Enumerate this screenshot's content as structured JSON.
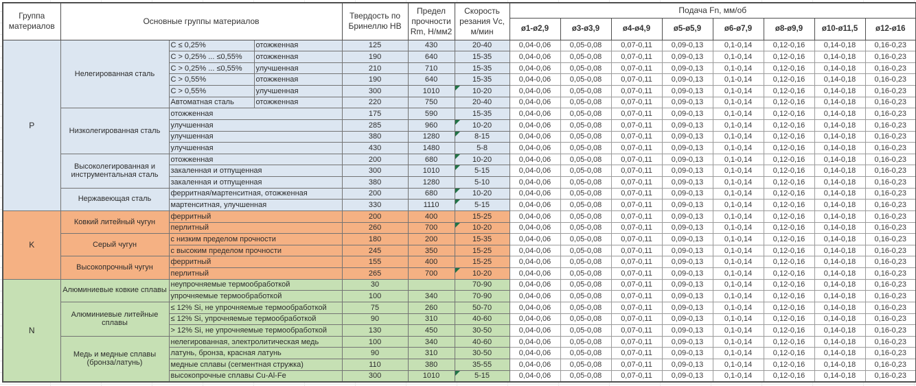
{
  "header": {
    "col_group": "Группа материалов",
    "col_material": "Основные группы материалов",
    "col_hb": "Твердость по Бринеллю HB",
    "col_rm": "Предел прочности Rm, Н/мм2",
    "col_vc": "Скорость резания Vc, м/мин",
    "col_feed": "Подача Fn, мм/об",
    "diameters": [
      "ø1-ø2,9",
      "ø3-ø3,9",
      "ø4-ø4,9",
      "ø5-ø5,9",
      "ø6-ø7,9",
      "ø8-ø9,9",
      "ø10-ø11,5",
      "ø12-ø16"
    ]
  },
  "feed_values": [
    "0,04-0,06",
    "0,05-0,08",
    "0,07-0,11",
    "0,09-0,13",
    "0,1-0,14",
    "0,12-0,16",
    "0,14-0,18",
    "0,16-0,23"
  ],
  "note_marker_color": "#217346",
  "groups": [
    {
      "code": "P",
      "color": "#DCE6F1",
      "subgroups": [
        {
          "name": "Нелегированная сталь",
          "rows": [
            {
              "d1": "C ≤ 0,25%",
              "d2": "отожженная",
              "hb": "125",
              "rm": "430",
              "vc": "20-40",
              "note": false
            },
            {
              "d1": "C > 0,25% ... ≤0,55%",
              "d2": "отожженная",
              "hb": "190",
              "rm": "640",
              "vc": "15-35",
              "note": false
            },
            {
              "d1": "C > 0,25% ... ≤0,55%",
              "d2": "улучшенная",
              "hb": "210",
              "rm": "710",
              "vc": "15-35",
              "note": false
            },
            {
              "d1": "C > 0,55%",
              "d2": "отожженная",
              "hb": "190",
              "rm": "640",
              "vc": "15-35",
              "note": false
            },
            {
              "d1": "C > 0,55%",
              "d2": "улучшенная",
              "hb": "300",
              "rm": "1010",
              "vc": "10-20",
              "note": true
            },
            {
              "d1": "Автоматная сталь",
              "d2": "отожженная",
              "hb": "220",
              "rm": "750",
              "vc": "20-40",
              "note": false
            }
          ]
        },
        {
          "name": "Низколегированная сталь",
          "rows": [
            {
              "d1": "отожженная",
              "d2": null,
              "hb": "175",
              "rm": "590",
              "vc": "15-35",
              "note": false
            },
            {
              "d1": "улучшенная",
              "d2": null,
              "hb": "285",
              "rm": "960",
              "vc": "10-20",
              "note": true
            },
            {
              "d1": "улучшенная",
              "d2": null,
              "hb": "380",
              "rm": "1280",
              "vc": "8-15",
              "note": true
            },
            {
              "d1": "улучшенная",
              "d2": null,
              "hb": "430",
              "rm": "1480",
              "vc": "5-8",
              "note": false
            }
          ]
        },
        {
          "name": "Высоколегированная и инструментальная сталь",
          "rows": [
            {
              "d1": "отожженная",
              "d2": null,
              "hb": "200",
              "rm": "680",
              "vc": "10-20",
              "note": true
            },
            {
              "d1": "закаленная и отпущенная",
              "d2": null,
              "hb": "300",
              "rm": "1010",
              "vc": "5-15",
              "note": true
            },
            {
              "d1": "закаленная и отпущенная",
              "d2": null,
              "hb": "380",
              "rm": "1280",
              "vc": "5-10",
              "note": false
            }
          ]
        },
        {
          "name": "Нержавеющая сталь",
          "rows": [
            {
              "d1": "ферритная/мартенситная, отожженная",
              "d2": null,
              "hb": "200",
              "rm": "680",
              "vc": "10-20",
              "note": true
            },
            {
              "d1": "мартенситная, улучшенная",
              "d2": null,
              "hb": "330",
              "rm": "1110",
              "vc": "5-15",
              "note": true
            }
          ]
        }
      ]
    },
    {
      "code": "K",
      "color": "#F5B183",
      "subgroups": [
        {
          "name": "Ковкий литейный чугун",
          "rows": [
            {
              "d1": "ферритный",
              "d2": null,
              "hb": "200",
              "rm": "400",
              "vc": "15-25",
              "note": false
            },
            {
              "d1": "перлитный",
              "d2": null,
              "hb": "260",
              "rm": "700",
              "vc": "10-20",
              "note": true
            }
          ]
        },
        {
          "name": "Серый чугун",
          "rows": [
            {
              "d1": "с низким пределом прочности",
              "d2": null,
              "hb": "180",
              "rm": "200",
              "vc": "15-35",
              "note": false
            },
            {
              "d1": "с высоким пределом прочности",
              "d2": null,
              "hb": "245",
              "rm": "350",
              "vc": "15-25",
              "note": false
            }
          ]
        },
        {
          "name": "Высокопрочный чугун",
          "rows": [
            {
              "d1": "ферритный",
              "d2": null,
              "hb": "155",
              "rm": "400",
              "vc": "15-25",
              "note": false
            },
            {
              "d1": "перлитный",
              "d2": null,
              "hb": "265",
              "rm": "700",
              "vc": "10-20",
              "note": true
            }
          ]
        }
      ]
    },
    {
      "code": "N",
      "color": "#C6E0B4",
      "subgroups": [
        {
          "name": "Алюминиевые ковкие сплавы",
          "rows": [
            {
              "d1": "неупрочняемые термообработкой",
              "d2": null,
              "hb": "30",
              "rm": "",
              "vc": "70-90",
              "note": false
            },
            {
              "d1": "упрочняемые термообработкой",
              "d2": null,
              "hb": "100",
              "rm": "340",
              "vc": "70-90",
              "note": false
            }
          ]
        },
        {
          "name": "Алюминиевые литейные сплавы",
          "rows": [
            {
              "d1": "≤ 12% Si, не упрочняемые термообработкой",
              "d2": null,
              "hb": "75",
              "rm": "260",
              "vc": "50-70",
              "note": false
            },
            {
              "d1": "≤ 12% Si, упрочняемые термообработкой",
              "d2": null,
              "hb": "90",
              "rm": "310",
              "vc": "40-60",
              "note": false
            },
            {
              "d1": "> 12% Si, не упрочняемые термообработкой",
              "d2": null,
              "hb": "130",
              "rm": "450",
              "vc": "30-50",
              "note": false
            }
          ]
        },
        {
          "name": "Медь и медные сплавы (бронза/латунь)",
          "rows": [
            {
              "d1": "нелегированная, электролитическая медь",
              "d2": null,
              "hb": "100",
              "rm": "340",
              "vc": "40-60",
              "note": false
            },
            {
              "d1": "латунь, бронза, красная латунь",
              "d2": null,
              "hb": "90",
              "rm": "310",
              "vc": "30-50",
              "note": false
            },
            {
              "d1": "медные сплавы (сегментная стружка)",
              "d2": null,
              "hb": "110",
              "rm": "380",
              "vc": "35-55",
              "note": false
            },
            {
              "d1": "высокопрочные сплавы Cu-Al-Fe",
              "d2": null,
              "hb": "300",
              "rm": "1010",
              "vc": "5-15",
              "note": true
            }
          ]
        }
      ]
    }
  ]
}
